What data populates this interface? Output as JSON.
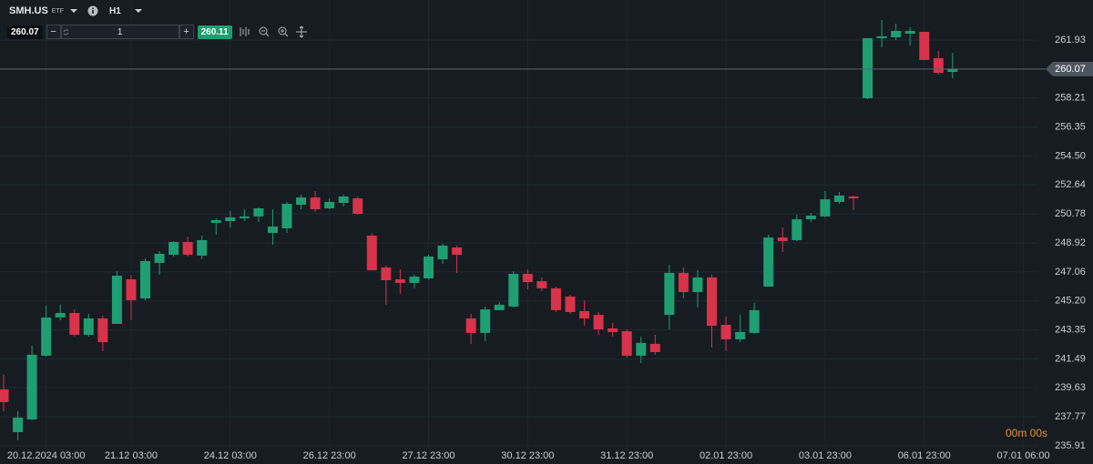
{
  "toolbar": {
    "symbol": "SMH.US",
    "symbol_type": "ETF",
    "timeframe": "H1",
    "sell_price": "260.07",
    "quantity": "1",
    "buy_price": "260.11"
  },
  "chart_data": {
    "type": "candlestick",
    "categories": [
      null,
      null,
      null,
      "20.12.2024 03:00",
      null,
      null,
      null,
      null,
      null,
      "21.12 03:00",
      null,
      null,
      null,
      null,
      null,
      null,
      "24.12 03:00",
      null,
      null,
      null,
      null,
      null,
      null,
      "26.12 23:00",
      null,
      null,
      null,
      null,
      null,
      null,
      "27.12 23:00",
      null,
      null,
      null,
      null,
      null,
      null,
      "30.12 23:00",
      null,
      null,
      null,
      null,
      null,
      null,
      "31.12 23:00",
      null,
      null,
      null,
      null,
      null,
      null,
      "02.01 23:00",
      null,
      null,
      null,
      null,
      null,
      null,
      "03.01 23:00",
      null,
      null,
      null,
      null,
      null,
      null,
      "06.01 23:00",
      null,
      null,
      null,
      null,
      null,
      null,
      "07.01 06:00"
    ],
    "open": [
      239.53,
      236.79,
      237.61,
      241.69,
      244.14,
      244.43,
      243.03,
      244.08,
      243.73,
      246.59,
      245.36,
      247.64,
      248.16,
      248.98,
      248.11,
      250.21,
      250.32,
      250.5,
      250.62,
      249.56,
      249.86,
      251.37,
      251.84,
      251.14,
      251.49,
      251.78,
      249.39,
      247.35,
      246.59,
      246.36,
      246.65,
      247.87,
      248.63,
      244.08,
      243.15,
      244.61,
      244.84,
      246.94,
      246.47,
      246.01,
      245.48,
      244.55,
      244.31,
      243.44,
      243.26,
      241.69,
      242.45,
      244.31,
      247.0,
      245.77,
      246.71,
      243.67,
      242.74,
      243.15,
      246.12,
      249.27,
      249.1,
      250.44,
      250.62,
      251.55,
      251.9,
      258.2,
      262.05,
      262.11,
      262.34,
      262.46,
      260.77,
      259.89,
      null,
      null,
      null,
      null,
      null
    ],
    "high": [
      240.46,
      238.13,
      242.33,
      244.9,
      244.96,
      244.66,
      244.37,
      244.26,
      247.11,
      246.88,
      247.93,
      248.4,
      249.04,
      249.33,
      249.39,
      250.5,
      250.97,
      251.08,
      251.2,
      251.08,
      251.55,
      252.02,
      252.25,
      251.78,
      252.02,
      251.9,
      249.56,
      247.46,
      247.23,
      246.88,
      248.16,
      248.86,
      248.75,
      244.37,
      244.84,
      245.13,
      247.11,
      247.23,
      246.71,
      246.12,
      245.6,
      245.25,
      244.49,
      243.79,
      243.38,
      242.91,
      243.03,
      247.52,
      247.35,
      247.17,
      246.88,
      244.2,
      244.31,
      245.07,
      249.45,
      249.91,
      250.73,
      250.85,
      252.25,
      252.19,
      251.96,
      262.05,
      263.22,
      262.98,
      262.75,
      262.46,
      261.23,
      261.12,
      null,
      null,
      null,
      null,
      null
    ],
    "low": [
      238.13,
      236.26,
      237.55,
      241.63,
      243.96,
      242.91,
      242.91,
      241.98,
      243.73,
      243.96,
      245.25,
      246.88,
      248.05,
      248.05,
      247.87,
      249.45,
      249.91,
      250.32,
      250.26,
      248.81,
      249.56,
      251.08,
      250.91,
      251.08,
      251.26,
      250.73,
      247.17,
      244.96,
      245.66,
      246.01,
      246.59,
      247.58,
      247.0,
      242.45,
      242.62,
      244.61,
      244.78,
      245.95,
      245.83,
      244.49,
      244.37,
      243.61,
      243.03,
      242.91,
      241.57,
      241.22,
      241.75,
      243.38,
      245.36,
      244.78,
      242.21,
      241.98,
      242.56,
      243.09,
      246.12,
      248.34,
      249.04,
      250.26,
      250.56,
      251.43,
      251.02,
      258.14,
      261.47,
      261.93,
      261.58,
      260.65,
      259.72,
      259.48,
      null,
      null,
      null,
      null,
      null
    ],
    "close": [
      238.71,
      237.72,
      241.75,
      244.14,
      244.43,
      243.03,
      244.08,
      242.56,
      246.82,
      245.25,
      247.76,
      248.22,
      248.98,
      248.16,
      249.1,
      250.38,
      250.56,
      250.62,
      251.14,
      249.97,
      251.43,
      251.84,
      251.08,
      251.55,
      251.9,
      250.79,
      247.17,
      246.53,
      246.36,
      246.76,
      248.05,
      248.75,
      248.16,
      243.15,
      244.66,
      244.96,
      246.94,
      246.41,
      246.01,
      244.61,
      244.49,
      244.08,
      243.38,
      243.21,
      241.69,
      242.51,
      241.92,
      247.0,
      245.77,
      246.71,
      243.61,
      242.74,
      243.21,
      244.61,
      249.27,
      249.04,
      250.44,
      250.67,
      251.72,
      251.96,
      251.78,
      262.05,
      262.17,
      262.52,
      262.52,
      260.65,
      259.83,
      260.07,
      null,
      null,
      null,
      null,
      null
    ],
    "up_color": "#1f9e72",
    "down_color": "#d7334a",
    "ylim": [
      235.62,
      264.5
    ],
    "yticks": [
      235.91,
      237.77,
      239.63,
      241.49,
      243.35,
      {
        "value": 245.2,
        "label": "245.20"
      },
      247.06,
      248.92,
      250.78,
      252.64,
      {
        "value": 254.5,
        "label": "254.50"
      },
      256.35,
      258.21,
      261.93
    ],
    "grid": true,
    "current_price": 260.07,
    "timer": "00m 00s"
  }
}
